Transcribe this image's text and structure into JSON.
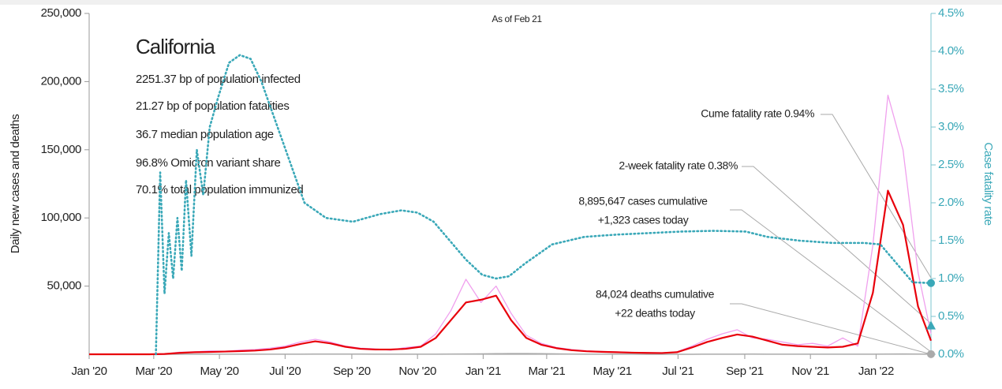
{
  "chart_data": {
    "type": "line",
    "subtitle": "As of Feb 21",
    "region": "California",
    "stats": [
      "2251.37 bp of population infected",
      "21.27 bp of population fatalities",
      "36.7 median population age",
      "96.8% Omicron variant share",
      "70.1% total population immunized"
    ],
    "ylabel": "Daily new cases and deaths",
    "y2label": "Case fatality rate",
    "xlim": [
      0,
      782
    ],
    "xticks": [
      {
        "value": 0,
        "label": "Jan '20"
      },
      {
        "value": 60,
        "label": "Mar '20"
      },
      {
        "value": 121,
        "label": "May '20"
      },
      {
        "value": 182,
        "label": "Jul '20"
      },
      {
        "value": 244,
        "label": "Sep '20"
      },
      {
        "value": 305,
        "label": "Nov '20"
      },
      {
        "value": 366,
        "label": "Jan '21"
      },
      {
        "value": 425,
        "label": "Mar '21"
      },
      {
        "value": 486,
        "label": "May '21"
      },
      {
        "value": 547,
        "label": "Jul '21"
      },
      {
        "value": 609,
        "label": "Sep '21"
      },
      {
        "value": 670,
        "label": "Nov '21"
      },
      {
        "value": 731,
        "label": "Jan '22"
      }
    ],
    "ylim": [
      0,
      250000
    ],
    "yticks": [
      {
        "value": 50000,
        "label": "50,000"
      },
      {
        "value": 100000,
        "label": "100,000"
      },
      {
        "value": 150000,
        "label": "150,000"
      },
      {
        "value": 200000,
        "label": "200,000"
      },
      {
        "value": 250000,
        "label": "250,000"
      }
    ],
    "y2lim": [
      0,
      4.5
    ],
    "y2ticks": [
      {
        "value": 0,
        "label": "0.0%"
      },
      {
        "value": 0.5,
        "label": "0.5%"
      },
      {
        "value": 1,
        "label": "1.0%"
      },
      {
        "value": 1.5,
        "label": "1.5%"
      },
      {
        "value": 2,
        "label": "2.0%"
      },
      {
        "value": 2.5,
        "label": "2.5%"
      },
      {
        "value": 3,
        "label": "3.0%"
      },
      {
        "value": 3.5,
        "label": "3.5%"
      },
      {
        "value": 4,
        "label": "4.0%"
      },
      {
        "value": 4.5,
        "label": "4.5%"
      }
    ],
    "x": [
      0,
      14,
      28,
      42,
      56,
      70,
      84,
      98,
      112,
      126,
      140,
      154,
      168,
      182,
      196,
      210,
      224,
      238,
      252,
      266,
      280,
      294,
      308,
      322,
      336,
      350,
      364,
      378,
      392,
      406,
      420,
      434,
      448,
      462,
      476,
      490,
      504,
      518,
      532,
      546,
      560,
      574,
      588,
      602,
      616,
      630,
      644,
      658,
      672,
      686,
      700,
      714,
      728,
      742,
      756,
      770,
      782
    ],
    "series": [
      {
        "color": "#f0a0ee",
        "width": 1.3,
        "values": [
          0,
          0,
          0,
          0,
          0,
          300,
          1500,
          1800,
          2500,
          2200,
          3000,
          3500,
          4500,
          6000,
          9000,
          11000,
          9000,
          6000,
          4500,
          4000,
          3000,
          5000,
          6000,
          15000,
          32000,
          55000,
          38000,
          50000,
          30000,
          14000,
          8000,
          5000,
          3500,
          2500,
          2000,
          1700,
          1400,
          1100,
          1000,
          1800,
          6000,
          11000,
          15000,
          18000,
          12000,
          11000,
          9000,
          7000,
          8000,
          6000,
          12000,
          6000,
          80000,
          190000,
          150000,
          60000,
          15000
        ]
      },
      {
        "color": "#aaaaaa",
        "width": 1.5,
        "values": [
          0,
          0,
          0,
          0,
          0,
          20,
          50,
          80,
          90,
          100,
          100,
          90,
          80,
          80,
          100,
          130,
          140,
          130,
          110,
          100,
          90,
          80,
          80,
          90,
          120,
          200,
          300,
          420,
          500,
          520,
          450,
          300,
          180,
          100,
          70,
          50,
          40,
          30,
          25,
          25,
          30,
          50,
          80,
          100,
          110,
          100,
          90,
          70,
          60,
          50,
          45,
          50,
          80,
          150,
          200,
          180,
          100
        ]
      },
      {
        "color": "#e8000b",
        "width": 2.2,
        "values": [
          0,
          0,
          0,
          0,
          0,
          200,
          1000,
          1500,
          1700,
          2000,
          2300,
          2700,
          3500,
          5000,
          7500,
          9500,
          8000,
          5500,
          4000,
          3500,
          3500,
          4000,
          5500,
          12000,
          25000,
          38000,
          40000,
          43000,
          25000,
          12000,
          7000,
          4500,
          3000,
          2200,
          1800,
          1500,
          1200,
          1000,
          900,
          1500,
          5000,
          9000,
          12000,
          14500,
          13000,
          10000,
          7000,
          6000,
          5500,
          5000,
          5500,
          8000,
          45000,
          120000,
          95000,
          35000,
          10000
        ]
      },
      {
        "color": "#3aa8b8",
        "width": 2.6,
        "dotted": true,
        "axis": "y2",
        "x": [
          62,
          66,
          70,
          74,
          78,
          82,
          86,
          90,
          95,
          100,
          106,
          112,
          120,
          130,
          140,
          150,
          160,
          170,
          185,
          200,
          220,
          245,
          270,
          290,
          305,
          320,
          335,
          350,
          365,
          378,
          390,
          405,
          430,
          460,
          490,
          520,
          550,
          580,
          610,
          630,
          660,
          690,
          720,
          735,
          750,
          765,
          782
        ],
        "values": [
          0,
          2.4,
          0.8,
          1.6,
          1.0,
          1.8,
          1.1,
          2.3,
          1.3,
          2.7,
          2.1,
          3.0,
          3.4,
          3.85,
          3.95,
          3.9,
          3.6,
          3.2,
          2.6,
          2.0,
          1.8,
          1.75,
          1.85,
          1.9,
          1.87,
          1.75,
          1.5,
          1.25,
          1.05,
          1.0,
          1.03,
          1.2,
          1.45,
          1.55,
          1.58,
          1.6,
          1.62,
          1.63,
          1.62,
          1.55,
          1.5,
          1.47,
          1.47,
          1.45,
          1.2,
          0.95,
          0.94
        ]
      }
    ],
    "two_week_rate": 0.38,
    "annotations": {
      "cume": "Cume fatality rate 0.94%",
      "twoweek": "2-week fatality rate 0.38%",
      "cases": "8,895,647 cases cumulative",
      "cases_today": "+1,323 cases today",
      "deaths": "84,024 deaths cumulative",
      "deaths_today": "+22 deaths today"
    }
  }
}
